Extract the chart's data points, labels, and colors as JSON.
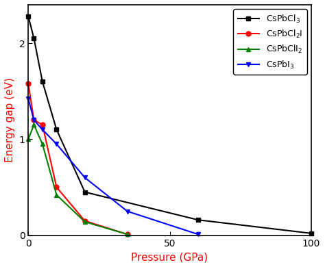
{
  "series": [
    {
      "label": "CsPbCl$_3$",
      "color": "black",
      "marker": "s",
      "x": [
        0,
        2,
        5,
        10,
        20,
        60,
        100
      ],
      "y": [
        2.28,
        2.05,
        1.6,
        1.1,
        0.45,
        0.16,
        0.02
      ]
    },
    {
      "label": "CsPbCl$_2$I",
      "color": "red",
      "marker": "o",
      "x": [
        0,
        2,
        5,
        10,
        20,
        35
      ],
      "y": [
        1.58,
        1.2,
        1.15,
        0.5,
        0.15,
        0.01
      ]
    },
    {
      "label": "CsPbClI$_2$",
      "color": "green",
      "marker": "^",
      "x": [
        0,
        2,
        5,
        10,
        20,
        35
      ],
      "y": [
        1.0,
        1.15,
        0.95,
        0.42,
        0.14,
        0.01
      ]
    },
    {
      "label": "CsPbI$_3$",
      "color": "blue",
      "marker": "v",
      "x": [
        0,
        2,
        5,
        10,
        20,
        35,
        60
      ],
      "y": [
        1.42,
        1.2,
        1.1,
        0.95,
        0.6,
        0.25,
        0.01
      ]
    }
  ],
  "xlabel": "Pressure (GPa)",
  "ylabel": "Energy gap (eV)",
  "xlim": [
    0,
    100
  ],
  "ylim": [
    0,
    2.4
  ],
  "xticks": [
    0,
    50,
    100
  ],
  "yticks": [
    0,
    1,
    2
  ],
  "xlabel_color": "red",
  "ylabel_color": "red",
  "legend_loc": "upper right",
  "figsize": [
    4.74,
    3.9
  ],
  "dpi": 100,
  "linewidth": 1.5,
  "markersize": 5
}
